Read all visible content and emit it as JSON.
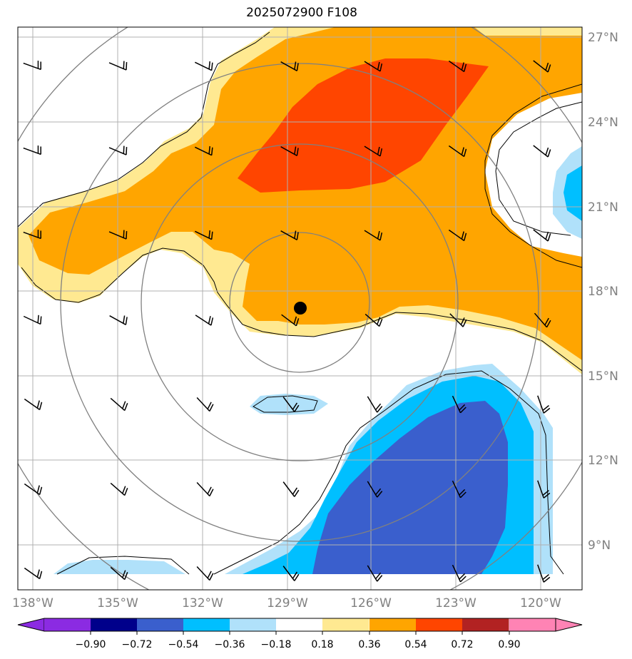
{
  "title": "2025072900 F108",
  "colors": {
    "yellow": "#ffe991",
    "orange": "#ffa500",
    "red": "#ff4500",
    "lightblue": "#b0e1fa",
    "cyan": "#00bfff",
    "royal": "#3a5fcd",
    "navy": "#00008b",
    "purple": "#8b2be2",
    "darkred": "#b22222",
    "pink": "#ff83b4",
    "grid": "#b0b0b0",
    "rings": "#808080"
  },
  "map": {
    "lon_range": [
      -138.5,
      -118.5
    ],
    "lat_range": [
      7.7,
      27.3
    ],
    "lon_ticks": [
      "138°W",
      "135°W",
      "132°W",
      "129°W",
      "126°W",
      "123°W",
      "120°W"
    ],
    "lat_ticks": [
      "27°N",
      "24°N",
      "21°N",
      "18°N",
      "15°N",
      "12°N",
      "9°N"
    ],
    "storm_center": {
      "lon": -128.6,
      "lat": 17.4
    }
  },
  "colorbar": {
    "ticks": [
      "−0.90",
      "−0.72",
      "−0.54",
      "−0.36",
      "−0.18",
      "0.18",
      "0.36",
      "0.54",
      "0.72",
      "0.90"
    ],
    "segments": [
      "#8b2be2",
      "#00008b",
      "#3a5fcd",
      "#00bfff",
      "#b0e1fa",
      "#ffffff",
      "#ffe991",
      "#ffa500",
      "#ff4500",
      "#b22222",
      "#ff83b4"
    ]
  }
}
